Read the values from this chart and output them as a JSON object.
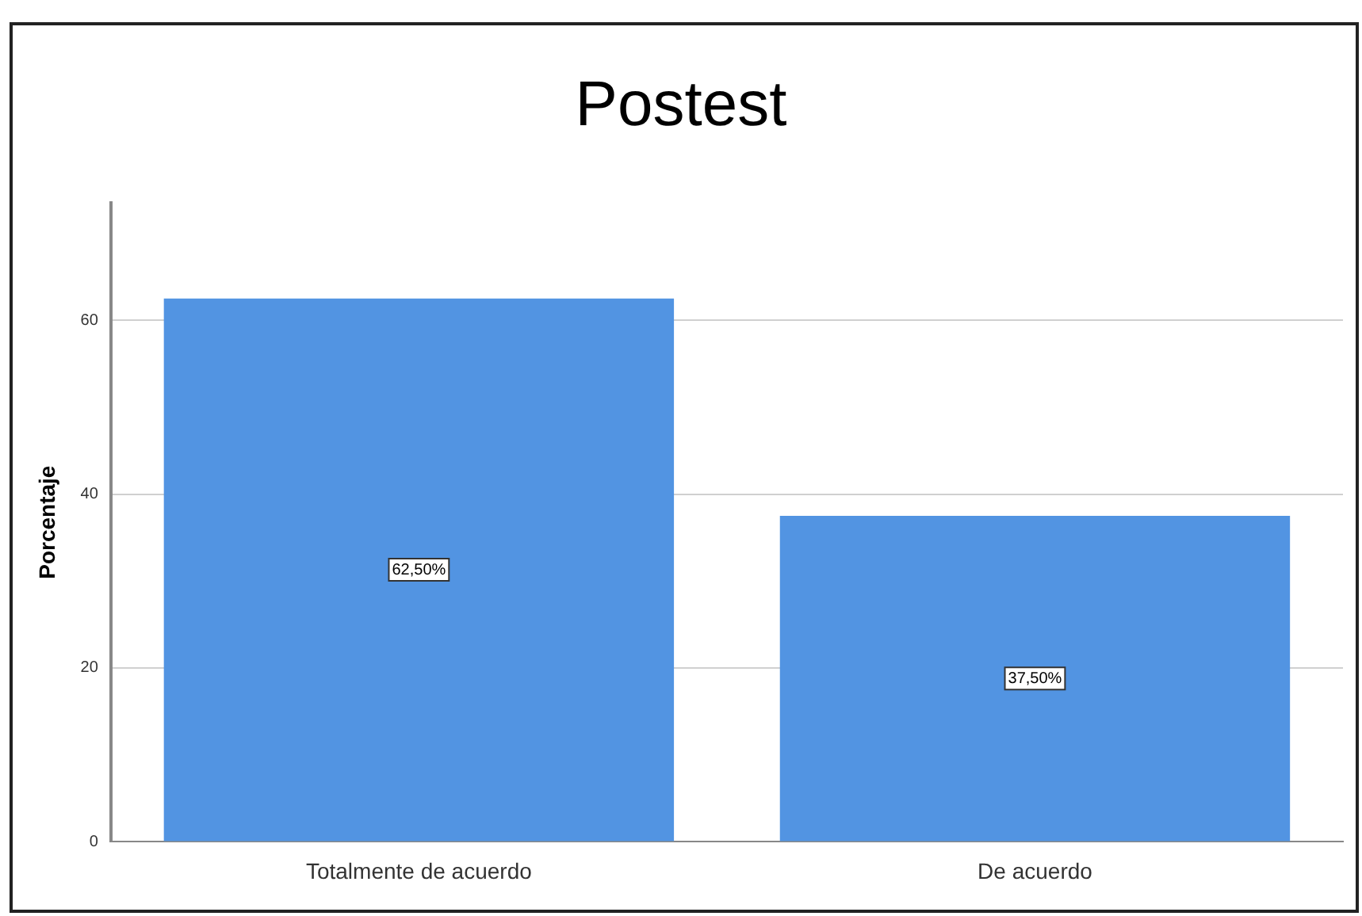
{
  "chart_data": {
    "type": "bar",
    "title": "Postest",
    "ylabel": "Porcentaje",
    "categories": [
      "Totalmente de acuerdo",
      "De acuerdo"
    ],
    "values": [
      62.5,
      37.5
    ],
    "value_labels": [
      "62,50%",
      "37,50%"
    ],
    "color": "#5294e2",
    "ylim": [
      0,
      73.5
    ],
    "yticks": [
      0,
      20,
      40,
      60
    ],
    "grid": "y"
  }
}
